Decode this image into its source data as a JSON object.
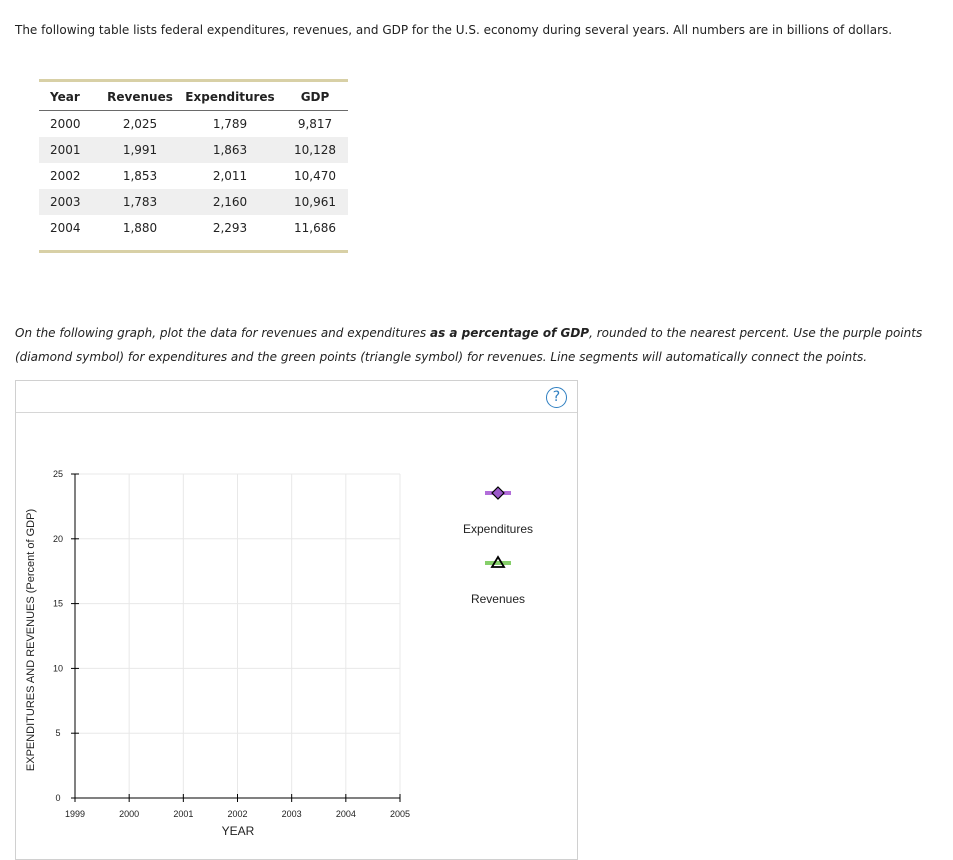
{
  "intro_text": "The following table lists federal expenditures, revenues, and GDP for the U.S. economy during several years. All numbers are in billions of dollars.",
  "table": {
    "headers": {
      "year": "Year",
      "revenues": "Revenues",
      "expenditures": "Expenditures",
      "gdp": "GDP"
    },
    "rows": [
      {
        "year": "2000",
        "revenues": "2,025",
        "expenditures": "1,789",
        "gdp": "9,817"
      },
      {
        "year": "2001",
        "revenues": "1,991",
        "expenditures": "1,863",
        "gdp": "10,128"
      },
      {
        "year": "2002",
        "revenues": "1,853",
        "expenditures": "2,011",
        "gdp": "10,470"
      },
      {
        "year": "2003",
        "revenues": "1,783",
        "expenditures": "2,160",
        "gdp": "10,961"
      },
      {
        "year": "2004",
        "revenues": "1,880",
        "expenditures": "2,293",
        "gdp": "11,686"
      }
    ]
  },
  "instructions": {
    "part1": "On the following graph, plot the data for revenues and expenditures ",
    "bold": "as a percentage of GDP",
    "part2": ", rounded to the nearest percent. Use the purple points (diamond symbol) for expenditures and the green points (triangle symbol) for revenues. Line segments will automatically connect the points."
  },
  "help_label": "?",
  "chart_data": {
    "type": "line",
    "title": "",
    "xlabel": "YEAR",
    "ylabel": "EXPENDITURES AND REVENUES (Percent of GDP)",
    "xlim": [
      1999,
      2005
    ],
    "ylim": [
      0,
      25
    ],
    "x_ticks": [
      "1999",
      "2000",
      "2001",
      "2002",
      "2003",
      "2004",
      "2005"
    ],
    "y_ticks": [
      "0",
      "5",
      "10",
      "15",
      "20",
      "25"
    ],
    "grid": true,
    "series": [],
    "legend": {
      "placement": "right",
      "items": [
        {
          "label": "Expenditures",
          "symbol": "diamond",
          "color": "#9b59c9",
          "bar_color": "#b26ed9"
        },
        {
          "label": "Revenues",
          "symbol": "triangle",
          "color": "#3fae49",
          "bar_color": "#86cf6a"
        }
      ]
    }
  }
}
